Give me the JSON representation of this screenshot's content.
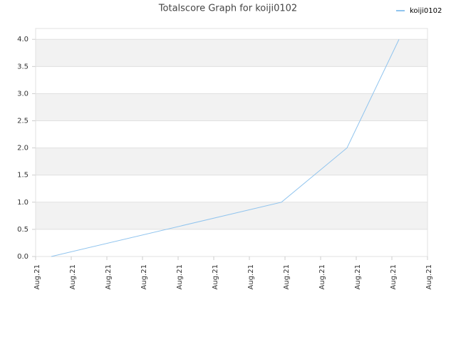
{
  "chart_data": {
    "type": "line",
    "title": "Totalscore Graph for koiji0102",
    "x": [
      0.44,
      6.9,
      8.74,
      10.2
    ],
    "series": [
      {
        "name": "koiji0102",
        "color": "#90c4ee",
        "values": [
          0,
          1,
          2,
          4
        ]
      }
    ],
    "xlim": [
      0,
      11
    ],
    "xticks": [
      {
        "value": 0,
        "label": "Aug.21"
      },
      {
        "value": 1,
        "label": "Aug.21"
      },
      {
        "value": 2,
        "label": "Aug.21"
      },
      {
        "value": 3,
        "label": "Aug.21"
      },
      {
        "value": 4,
        "label": "Aug.21"
      },
      {
        "value": 5,
        "label": "Aug.21"
      },
      {
        "value": 6,
        "label": "Aug.21"
      },
      {
        "value": 7,
        "label": "Aug.21"
      },
      {
        "value": 8,
        "label": "Aug.21"
      },
      {
        "value": 9,
        "label": "Aug.21"
      },
      {
        "value": 10,
        "label": "Aug.21"
      },
      {
        "value": 11,
        "label": "Aug.21"
      }
    ],
    "ylim": [
      0,
      4.2
    ],
    "yticks": [
      {
        "value": 0,
        "label": "0.0"
      },
      {
        "value": 0.5,
        "label": "0.5"
      },
      {
        "value": 1,
        "label": "1.0"
      },
      {
        "value": 1.5,
        "label": "1.5"
      },
      {
        "value": 2,
        "label": "2.0"
      },
      {
        "value": 2.5,
        "label": "2.5"
      },
      {
        "value": 3,
        "label": "3.0"
      },
      {
        "value": 3.5,
        "label": "3.5"
      },
      {
        "value": 4,
        "label": "4.0"
      }
    ],
    "grid": true,
    "legend": "top-right"
  }
}
